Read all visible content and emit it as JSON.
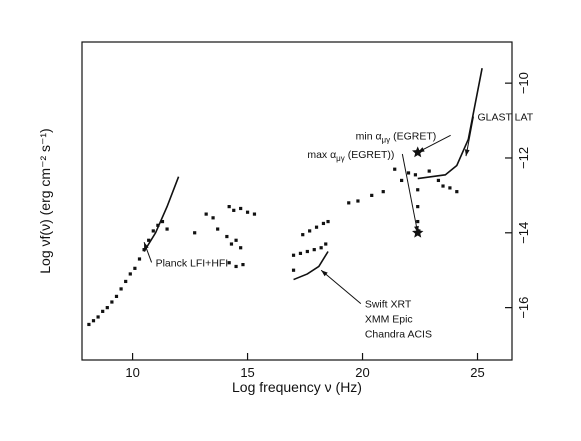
{
  "chart_data": {
    "type": "scatter",
    "title": "",
    "xlabel": "Log frequency ν (Hz)",
    "ylabel": "Log νf(ν) (erg cm⁻² s⁻¹)",
    "xlim": [
      7.8,
      26.5
    ],
    "ylim": [
      -17.4,
      -8.9
    ],
    "x_ticks": [
      10,
      15,
      20,
      25
    ],
    "y_ticks": [
      -10,
      -12,
      -14,
      -16
    ],
    "x_tick_labels": [
      "10",
      "15",
      "20",
      "25"
    ],
    "y_tick_labels": [
      "−10",
      "−12",
      "−14",
      "−16"
    ],
    "grid": false,
    "legend": "none",
    "series": [
      {
        "values": [
          {
            "x": 8.1,
            "y": -16.45
          },
          {
            "x": 8.3,
            "y": -16.35
          },
          {
            "x": 8.5,
            "y": -16.25
          },
          {
            "x": 8.7,
            "y": -16.1
          },
          {
            "x": 8.9,
            "y": -16.0
          },
          {
            "x": 9.1,
            "y": -15.85
          },
          {
            "x": 9.3,
            "y": -15.7
          },
          {
            "x": 9.5,
            "y": -15.5
          },
          {
            "x": 9.7,
            "y": -15.3
          },
          {
            "x": 9.9,
            "y": -15.1
          },
          {
            "x": 10.1,
            "y": -14.95
          },
          {
            "x": 10.3,
            "y": -14.7
          },
          {
            "x": 10.5,
            "y": -14.45
          },
          {
            "x": 10.7,
            "y": -14.2
          },
          {
            "x": 10.9,
            "y": -13.95
          },
          {
            "x": 11.1,
            "y": -13.8
          },
          {
            "x": 11.3,
            "y": -13.7
          },
          {
            "x": 11.5,
            "y": -13.9
          },
          {
            "x": 12.7,
            "y": -14.0
          },
          {
            "x": 13.2,
            "y": -13.5
          },
          {
            "x": 13.5,
            "y": -13.6
          },
          {
            "x": 13.7,
            "y": -13.9
          },
          {
            "x": 14.2,
            "y": -13.3
          },
          {
            "x": 14.4,
            "y": -13.4
          },
          {
            "x": 14.7,
            "y": -13.35
          },
          {
            "x": 15.0,
            "y": -13.45
          },
          {
            "x": 15.3,
            "y": -13.5
          },
          {
            "x": 14.1,
            "y": -14.1
          },
          {
            "x": 14.3,
            "y": -14.3
          },
          {
            "x": 14.5,
            "y": -14.2
          },
          {
            "x": 14.7,
            "y": -14.4
          },
          {
            "x": 14.2,
            "y": -14.8
          },
          {
            "x": 14.5,
            "y": -14.9
          },
          {
            "x": 14.8,
            "y": -14.85
          },
          {
            "x": 17.4,
            "y": -14.05
          },
          {
            "x": 17.7,
            "y": -13.95
          },
          {
            "x": 18.0,
            "y": -13.85
          },
          {
            "x": 18.3,
            "y": -13.75
          },
          {
            "x": 18.5,
            "y": -13.7
          },
          {
            "x": 17.0,
            "y": -14.6
          },
          {
            "x": 17.3,
            "y": -14.55
          },
          {
            "x": 17.6,
            "y": -14.5
          },
          {
            "x": 17.9,
            "y": -14.45
          },
          {
            "x": 18.2,
            "y": -14.4
          },
          {
            "x": 18.4,
            "y": -14.3
          },
          {
            "x": 17.0,
            "y": -15.0
          },
          {
            "x": 19.4,
            "y": -13.2
          },
          {
            "x": 19.8,
            "y": -13.15
          },
          {
            "x": 20.4,
            "y": -13.0
          },
          {
            "x": 20.9,
            "y": -12.9
          },
          {
            "x": 22.3,
            "y": -12.45
          },
          {
            "x": 22.4,
            "y": -12.85
          },
          {
            "x": 22.4,
            "y": -13.3
          },
          {
            "x": 22.4,
            "y": -13.7
          },
          {
            "x": 22.45,
            "y": -13.95
          },
          {
            "x": 22.9,
            "y": -12.35
          },
          {
            "x": 23.3,
            "y": -12.6
          },
          {
            "x": 23.5,
            "y": -12.75
          },
          {
            "x": 23.8,
            "y": -12.8
          },
          {
            "x": 24.1,
            "y": -12.9
          },
          {
            "x": 21.4,
            "y": -12.3
          },
          {
            "x": 21.7,
            "y": -12.6
          },
          {
            "x": 22.0,
            "y": -12.4
          }
        ]
      }
    ],
    "annotations": [
      {
        "text": "GLAST LAT",
        "x": 25.0,
        "y": -11.0,
        "arrow_to": [
          24.5,
          -11.95
        ]
      },
      {
        "text": "min α",
        "sub": "μγ",
        "suffix": " (EGRET)",
        "x": 19.7,
        "y": -11.5,
        "arrow_to": [
          22.4,
          -11.85
        ]
      },
      {
        "text": "max α",
        "sub": "μγ",
        "suffix": " (EGRET))",
        "x": 17.6,
        "y": -12.0,
        "arrow_to": [
          22.4,
          -14.0
        ]
      },
      {
        "text": "Planck LFI+HFI",
        "x": 11.0,
        "y": -14.9,
        "arrow_to": [
          10.5,
          -14.25
        ]
      },
      {
        "text": "Swift XRT",
        "x": 20.1,
        "y": -16.0,
        "arrow_to": [
          18.2,
          -15.0
        ]
      },
      {
        "text": "XMM Epic",
        "x": 20.1,
        "y": -16.4
      },
      {
        "text": "Chandra ACIS",
        "x": 20.1,
        "y": -16.8
      }
    ]
  }
}
